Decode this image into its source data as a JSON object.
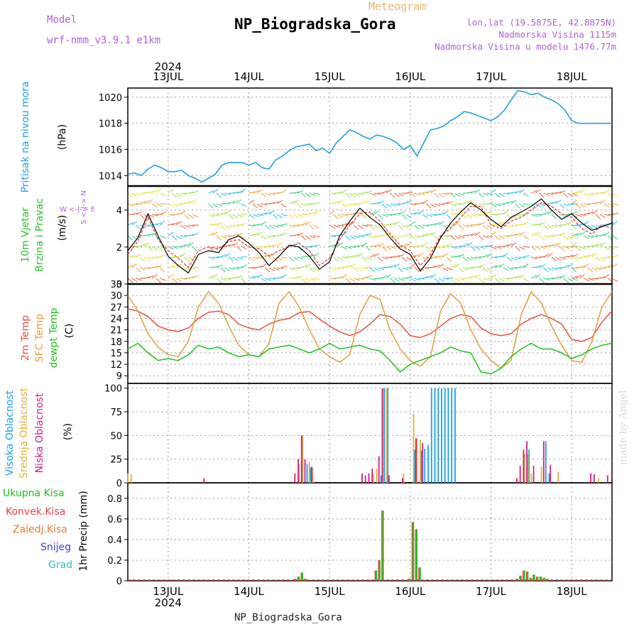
{
  "header": {
    "title": "NP_Biogradska_Gora",
    "subtitle": "Meteogram",
    "model_label": "Model",
    "model_name": "wrf-nmm_v3.9.1 e1km",
    "info_lonlat": "lon,lat (19.5875E, 42.8875N)",
    "info_elevation": "Nadmorska Visina 1115m",
    "info_model_elevation": "Nadmorska Visina u modelu 1476.77m"
  },
  "footer_label": "NP_Biogradska_Gora",
  "watermark": "made by Angel",
  "time_axis": {
    "year": "2024",
    "day_labels": [
      "13JUL",
      "14JUL",
      "15JUL",
      "16JUL",
      "17JUL",
      "18JUL"
    ],
    "start_hour": 0,
    "end_hour": 144
  },
  "panel_labels": {
    "pressure": {
      "name": "Pritisak na nivou mora",
      "unit": "(hPa)",
      "color": "#22a0e0"
    },
    "wind": {
      "name1": "10m Vjetar",
      "name2": "Brzina i Pravac",
      "unit": "(m/s)",
      "color": "#30c030",
      "compass_we": "W <-|-> E",
      "compass_sn": "S <-|-> N",
      "compass_color": "#b060d8"
    },
    "temp": {
      "t2m": "2m Temp",
      "sfc": "SFC Temp",
      "dewpt": "dewpt Temp",
      "unit": "(C)"
    },
    "cloud": {
      "high": "Visoka Oblacnost",
      "mid": "Srednja Oblacnost",
      "low": "Niska Oblacnost",
      "unit": "(%)"
    },
    "precip": {
      "total": "Ukupna Kisa",
      "conv": "Konvek.Kisa",
      "frozen": "Zaledj.Kisa",
      "snow": "Snijeg",
      "graupel": "Grad",
      "unit": "1hr Precip (mm)"
    }
  },
  "colors": {
    "pressure": "#22a0e0",
    "t2m": "#e85040",
    "sfc": "#e0a040",
    "dewpt": "#20c020",
    "cloud_high": "#1aa0ee",
    "cloud_mid": "#e0b040",
    "cloud_low": "#d02080",
    "precip_total": "#20c020",
    "precip_conv": "#e84040",
    "precip_frozen": "#f07830",
    "precip_snow": "#4040d0",
    "precip_graupel": "#30c0c0"
  },
  "chart_data": [
    {
      "type": "line",
      "panel": "pressure",
      "x_unit": "hours since 2024-07-12 12:00",
      "x": [
        0,
        2,
        4,
        6,
        8,
        10,
        12,
        14,
        16,
        18,
        20,
        22,
        24,
        26,
        28,
        30,
        32,
        34,
        36,
        38,
        40,
        42,
        44,
        46,
        48,
        50,
        52,
        54,
        56,
        58,
        60,
        62,
        64,
        66,
        68,
        70,
        72,
        74,
        76,
        78,
        80,
        82,
        84,
        86,
        88,
        90,
        92,
        94,
        96,
        98,
        100,
        102,
        104,
        106,
        108,
        110,
        112,
        114,
        116,
        118,
        120,
        122,
        124,
        126,
        128,
        130,
        132,
        134,
        136,
        138,
        140,
        142,
        144
      ],
      "series": [
        {
          "name": "Pritisak na nivou mora",
          "values": [
            1014.1,
            1014.2,
            1014.0,
            1014.5,
            1014.8,
            1014.6,
            1014.3,
            1014.3,
            1014.4,
            1014.0,
            1013.8,
            1013.5,
            1013.8,
            1014.1,
            1014.8,
            1015.0,
            1015.0,
            1015.0,
            1014.8,
            1015.0,
            1014.6,
            1014.5,
            1015.2,
            1015.5,
            1015.9,
            1016.2,
            1016.3,
            1016.4,
            1015.9,
            1016.1,
            1015.7,
            1016.5,
            1017.0,
            1017.5,
            1017.3,
            1017.0,
            1016.8,
            1017.1,
            1017.0,
            1016.8,
            1016.5,
            1016.0,
            1016.3,
            1015.5,
            1016.5,
            1017.5,
            1017.6,
            1017.8,
            1018.2,
            1018.5,
            1018.9,
            1018.8,
            1018.6,
            1018.4,
            1018.2,
            1018.5,
            1019.0,
            1019.8,
            1020.5,
            1020.4,
            1020.2,
            1020.3,
            1020.0,
            1019.8,
            1019.5,
            1019.0,
            1018.2,
            1018.0,
            1018.0,
            1018.0,
            1018.0,
            1018.0,
            1018.0
          ]
        }
      ],
      "ylim": [
        1013.2,
        1020.7
      ],
      "yticks": [
        1014,
        1016,
        1018,
        1020
      ],
      "grid": true
    },
    {
      "type": "line",
      "panel": "wind",
      "x_unit": "hours since 2024-07-12 12:00",
      "x": [
        0,
        3,
        6,
        9,
        12,
        15,
        18,
        21,
        24,
        27,
        30,
        33,
        36,
        39,
        42,
        45,
        48,
        51,
        54,
        57,
        60,
        63,
        66,
        69,
        72,
        75,
        78,
        81,
        84,
        87,
        90,
        93,
        96,
        99,
        102,
        105,
        108,
        111,
        114,
        117,
        120,
        123,
        126,
        129,
        132,
        135,
        138,
        141,
        144
      ],
      "series": [
        {
          "name": "wind speed",
          "values": [
            1.8,
            2.5,
            3.8,
            2.6,
            1.5,
            1.0,
            0.6,
            1.6,
            1.8,
            1.7,
            2.4,
            2.6,
            2.2,
            1.7,
            1.0,
            1.5,
            2.1,
            2.0,
            1.5,
            0.8,
            1.2,
            2.6,
            3.4,
            4.1,
            3.6,
            3.2,
            2.5,
            1.9,
            1.6,
            0.7,
            1.4,
            2.5,
            3.3,
            3.9,
            4.4,
            4.0,
            3.5,
            3.1,
            3.6,
            3.9,
            4.2,
            4.6,
            4.0,
            3.5,
            3.8,
            3.3,
            2.9,
            3.1,
            3.3
          ]
        },
        {
          "name": "wind gust",
          "values": [
            1.6,
            2.3,
            3.6,
            2.4,
            1.8,
            1.4,
            0.9,
            1.8,
            2.0,
            1.9,
            2.3,
            2.4,
            2.0,
            1.9,
            1.5,
            1.8,
            2.0,
            2.2,
            1.8,
            1.0,
            1.4,
            2.4,
            3.2,
            3.8,
            3.9,
            3.4,
            2.7,
            2.1,
            1.8,
            1.0,
            1.6,
            2.6,
            3.0,
            3.6,
            4.2,
            4.2,
            3.2,
            3.0,
            3.4,
            3.6,
            4.0,
            4.4,
            4.2,
            3.8,
            3.6,
            3.0,
            2.7,
            3.2,
            3.0
          ]
        }
      ],
      "ylim": [
        0,
        5.3
      ],
      "yticks": [
        0,
        2,
        4
      ],
      "grid": true
    },
    {
      "type": "line",
      "panel": "temperature",
      "x_unit": "hours since 2024-07-12 12:00",
      "x": [
        0,
        3,
        6,
        9,
        12,
        15,
        18,
        21,
        24,
        27,
        30,
        33,
        36,
        39,
        42,
        45,
        48,
        51,
        54,
        57,
        60,
        63,
        66,
        69,
        72,
        75,
        78,
        81,
        84,
        87,
        90,
        93,
        96,
        99,
        102,
        105,
        108,
        111,
        114,
        117,
        120,
        123,
        126,
        129,
        132,
        135,
        138,
        141,
        144
      ],
      "series": [
        {
          "name": "2m Temp",
          "values": [
            26.5,
            25.9,
            24.5,
            22.0,
            21.0,
            20.6,
            21.5,
            24.0,
            25.6,
            25.9,
            25.0,
            22.5,
            21.5,
            21.0,
            22.5,
            23.5,
            24.0,
            25.5,
            25.8,
            23.8,
            22.0,
            20.5,
            19.5,
            20.5,
            22.5,
            25.0,
            24.5,
            22.5,
            19.5,
            19.0,
            20.0,
            22.0,
            24.0,
            25.0,
            24.5,
            21.5,
            20.0,
            19.5,
            20.0,
            22.5,
            24.0,
            25.0,
            24.0,
            22.5,
            18.5,
            18.0,
            19.0,
            23.0,
            26.0
          ]
        },
        {
          "name": "SFC Temp",
          "values": [
            30.0,
            26.0,
            20.0,
            16.5,
            14.5,
            14.0,
            18.0,
            27.0,
            31.0,
            28.0,
            22.0,
            17.0,
            14.5,
            14.0,
            17.5,
            28.0,
            31.0,
            27.0,
            21.0,
            16.0,
            14.0,
            12.5,
            14.5,
            25.0,
            30.0,
            29.0,
            21.0,
            16.0,
            13.0,
            11.5,
            14.0,
            26.0,
            30.5,
            28.0,
            21.0,
            16.0,
            13.0,
            11.0,
            13.0,
            25.0,
            31.0,
            28.0,
            22.0,
            17.0,
            13.0,
            12.5,
            18.0,
            27.0,
            31.0
          ]
        },
        {
          "name": "dewpt Temp",
          "values": [
            16.0,
            17.5,
            15.0,
            13.0,
            13.5,
            13.0,
            14.5,
            17.0,
            16.0,
            16.5,
            15.0,
            14.0,
            14.5,
            14.0,
            16.0,
            16.5,
            17.0,
            16.0,
            15.0,
            16.0,
            17.5,
            16.0,
            16.5,
            17.0,
            16.0,
            15.5,
            13.0,
            10.0,
            12.0,
            13.0,
            14.0,
            15.0,
            16.5,
            15.5,
            15.0,
            10.0,
            9.5,
            11.0,
            14.0,
            16.0,
            17.5,
            16.0,
            16.0,
            15.0,
            13.5,
            14.5,
            16.0,
            17.0,
            17.5
          ]
        }
      ],
      "ylim": [
        7,
        33
      ],
      "yticks": [
        9,
        12,
        15,
        18,
        21,
        24,
        27,
        30,
        33
      ],
      "grid": true
    },
    {
      "type": "bar",
      "panel": "cloud",
      "x_unit": "hours since 2024-07-12 12:00",
      "series": [
        {
          "name": "Visoka Oblacnost",
          "bars": [
            [
              53,
              20
            ],
            [
              54,
              16
            ],
            [
              75,
              8
            ],
            [
              76,
              100
            ],
            [
              77,
              100
            ],
            [
              85,
              35
            ],
            [
              87,
              34
            ],
            [
              88,
              36
            ],
            [
              89,
              40
            ],
            [
              90,
              100
            ],
            [
              91,
              100
            ],
            [
              92,
              100
            ],
            [
              93,
              100
            ],
            [
              94,
              100
            ],
            [
              95,
              100
            ],
            [
              96,
              100
            ],
            [
              97,
              100
            ],
            [
              119,
              35
            ],
            [
              124,
              44
            ],
            [
              125,
              10
            ]
          ]
        },
        {
          "name": "Srednja Oblacnost",
          "bars": [
            [
              0,
              10
            ],
            [
              1,
              9
            ],
            [
              51,
              20
            ],
            [
              52,
              50
            ],
            [
              54,
              22
            ],
            [
              55,
              16
            ],
            [
              73,
              9
            ],
            [
              74,
              15
            ],
            [
              76,
              100
            ],
            [
              77,
              100
            ],
            [
              82,
              10
            ],
            [
              85,
              73
            ],
            [
              86,
              47
            ],
            [
              87,
              45
            ],
            [
              118,
              31
            ],
            [
              119,
              30
            ],
            [
              120,
              10
            ],
            [
              123,
              17
            ],
            [
              128,
              12
            ],
            [
              140,
              5
            ]
          ]
        },
        {
          "name": "Niska Oblacnost",
          "bars": [
            [
              23,
              5
            ],
            [
              50,
              10
            ],
            [
              51,
              25
            ],
            [
              52,
              50
            ],
            [
              53,
              25
            ],
            [
              55,
              17
            ],
            [
              70,
              10
            ],
            [
              71,
              8
            ],
            [
              72,
              10
            ],
            [
              73,
              15
            ],
            [
              75,
              28
            ],
            [
              76,
              100
            ],
            [
              78,
              8
            ],
            [
              82,
              5
            ],
            [
              86,
              47
            ],
            [
              88,
              42
            ],
            [
              116,
              5
            ],
            [
              117,
              18
            ],
            [
              118,
              35
            ],
            [
              119,
              44
            ],
            [
              121,
              18
            ],
            [
              124,
              44
            ],
            [
              126,
              19
            ],
            [
              138,
              10
            ],
            [
              139,
              9
            ],
            [
              143,
              8
            ]
          ]
        }
      ],
      "ylim": [
        0,
        105
      ],
      "yticks": [
        0,
        25,
        50,
        75,
        100
      ],
      "grid": true
    },
    {
      "type": "bar",
      "panel": "precip",
      "x_unit": "hours since 2024-07-12 12:00",
      "series": [
        {
          "name": "Ukupna Kisa",
          "bars": [
            [
              50,
              0.02
            ],
            [
              51,
              0.04
            ],
            [
              52,
              0.08
            ],
            [
              53,
              0.02
            ],
            [
              74,
              0.1
            ],
            [
              75,
              0.2
            ],
            [
              76,
              0.68
            ],
            [
              84,
              0.02
            ],
            [
              85,
              0.57
            ],
            [
              86,
              0.5
            ],
            [
              87,
              0.13
            ],
            [
              88,
              0.01
            ],
            [
              116,
              0.02
            ],
            [
              117,
              0.05
            ],
            [
              118,
              0.1
            ],
            [
              119,
              0.09
            ],
            [
              120,
              0.03
            ],
            [
              121,
              0.06
            ],
            [
              122,
              0.04
            ],
            [
              123,
              0.04
            ],
            [
              124,
              0.03
            ],
            [
              125,
              0.02
            ]
          ]
        },
        {
          "name": "Konvek.Kisa",
          "bars": [
            [
              50,
              0.02
            ],
            [
              51,
              0.04
            ],
            [
              52,
              0.08
            ],
            [
              53,
              0.02
            ],
            [
              74,
              0.1
            ],
            [
              75,
              0.2
            ],
            [
              76,
              0.68
            ],
            [
              84,
              0.02
            ],
            [
              85,
              0.57
            ],
            [
              86,
              0.5
            ],
            [
              87,
              0.13
            ],
            [
              88,
              0.01
            ],
            [
              116,
              0.02
            ],
            [
              117,
              0.05
            ],
            [
              118,
              0.1
            ],
            [
              119,
              0.09
            ],
            [
              120,
              0.03
            ],
            [
              121,
              0.06
            ],
            [
              122,
              0.04
            ],
            [
              123,
              0.04
            ],
            [
              124,
              0.03
            ],
            [
              125,
              0.02
            ]
          ]
        }
      ],
      "ylim": [
        0,
        0.95
      ],
      "yticks": [
        0,
        0.2,
        0.4,
        0.6,
        0.8
      ],
      "grid": true
    }
  ]
}
